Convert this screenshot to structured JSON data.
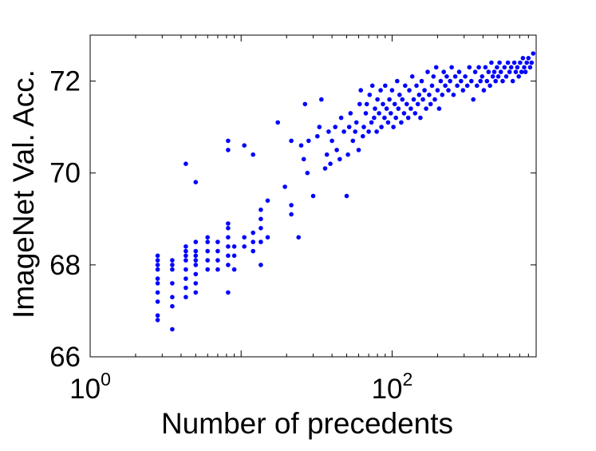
{
  "chart_data": {
    "type": "scatter",
    "title": "",
    "xlabel": "Number of precedents",
    "ylabel": "ImageNet Val. Acc.",
    "xscale": "log",
    "xlim": [
      1,
      900
    ],
    "ylim": [
      66,
      73
    ],
    "grid": false,
    "legend": "none",
    "x_ticks": [
      {
        "value": 1,
        "base": "10",
        "exp": "0"
      },
      {
        "value": 100,
        "base": "10",
        "exp": "2"
      }
    ],
    "y_ticks": [
      {
        "value": 66,
        "label": "66"
      },
      {
        "value": 68,
        "label": "68"
      },
      {
        "value": 70,
        "label": "70"
      },
      {
        "value": 72,
        "label": "72"
      }
    ],
    "marker_color": "#0000ff",
    "series": [
      {
        "points": [
          [
            2.8,
            66.8
          ],
          [
            2.8,
            66.9
          ],
          [
            2.8,
            67.2
          ],
          [
            2.8,
            67.4
          ],
          [
            2.8,
            67.6
          ],
          [
            2.8,
            67.7
          ],
          [
            2.8,
            67.9
          ],
          [
            2.8,
            68.0
          ],
          [
            2.8,
            68.1
          ],
          [
            2.8,
            68.2
          ],
          [
            3.5,
            66.6
          ],
          [
            3.5,
            67.1
          ],
          [
            3.5,
            67.3
          ],
          [
            3.5,
            67.6
          ],
          [
            3.5,
            67.9
          ],
          [
            3.5,
            68.0
          ],
          [
            3.5,
            68.1
          ],
          [
            4.3,
            67.3
          ],
          [
            4.3,
            67.5
          ],
          [
            4.3,
            67.7
          ],
          [
            4.3,
            67.9
          ],
          [
            4.3,
            68.1
          ],
          [
            4.3,
            68.2
          ],
          [
            4.3,
            68.3
          ],
          [
            4.3,
            68.4
          ],
          [
            4.3,
            70.2
          ],
          [
            5.0,
            67.4
          ],
          [
            5.0,
            67.6
          ],
          [
            5.0,
            67.8
          ],
          [
            5.0,
            68.0
          ],
          [
            5.0,
            68.1
          ],
          [
            5.0,
            68.2
          ],
          [
            5.0,
            68.3
          ],
          [
            5.0,
            68.5
          ],
          [
            5.0,
            69.8
          ],
          [
            6.0,
            67.9
          ],
          [
            6.0,
            68.1
          ],
          [
            6.0,
            68.3
          ],
          [
            6.0,
            68.5
          ],
          [
            6.0,
            68.6
          ],
          [
            7.0,
            67.9
          ],
          [
            7.0,
            68.1
          ],
          [
            7.0,
            68.3
          ],
          [
            7.0,
            68.5
          ],
          [
            8.2,
            67.4
          ],
          [
            8.2,
            68.0
          ],
          [
            8.2,
            68.2
          ],
          [
            8.2,
            68.4
          ],
          [
            8.2,
            68.6
          ],
          [
            8.2,
            68.8
          ],
          [
            8.2,
            68.9
          ],
          [
            8.2,
            70.5
          ],
          [
            8.2,
            70.7
          ],
          [
            9.0,
            67.9
          ],
          [
            9.0,
            68.2
          ],
          [
            9.0,
            68.4
          ],
          [
            10.5,
            68.4
          ],
          [
            10.5,
            68.6
          ],
          [
            10.5,
            70.6
          ],
          [
            12.0,
            68.3
          ],
          [
            12.0,
            68.5
          ],
          [
            12.0,
            68.7
          ],
          [
            12.0,
            70.4
          ],
          [
            13.5,
            68.0
          ],
          [
            13.5,
            68.5
          ],
          [
            13.5,
            68.8
          ],
          [
            13.5,
            69.0
          ],
          [
            13.5,
            69.2
          ],
          [
            15.0,
            69.4
          ],
          [
            15.0,
            68.6
          ],
          [
            17.5,
            71.1
          ],
          [
            19.5,
            69.7
          ],
          [
            21.5,
            69.1
          ],
          [
            21.5,
            69.3
          ],
          [
            21.5,
            70.7
          ],
          [
            24.0,
            68.6
          ],
          [
            25.0,
            70.6
          ],
          [
            26.0,
            70.3
          ],
          [
            26.5,
            71.5
          ],
          [
            27.5,
            70.0
          ],
          [
            28.0,
            70.7
          ],
          [
            30.0,
            69.5
          ],
          [
            32.0,
            70.8
          ],
          [
            33.0,
            71.0
          ],
          [
            34.0,
            71.6
          ],
          [
            36.0,
            70.1
          ],
          [
            37.0,
            70.4
          ],
          [
            38.0,
            70.9
          ],
          [
            39.0,
            70.2
          ],
          [
            40.0,
            70.7
          ],
          [
            42.0,
            71.0
          ],
          [
            43.0,
            70.5
          ],
          [
            45.0,
            70.3
          ],
          [
            46.0,
            71.2
          ],
          [
            48.0,
            70.9
          ],
          [
            50.0,
            69.5
          ],
          [
            51.0,
            70.4
          ],
          [
            52.0,
            71.0
          ],
          [
            53.0,
            71.3
          ],
          [
            55.0,
            70.7
          ],
          [
            57.0,
            70.9
          ],
          [
            58.0,
            71.1
          ],
          [
            60.0,
            70.5
          ],
          [
            61.0,
            71.5
          ],
          [
            62.0,
            71.8
          ],
          [
            64.0,
            70.8
          ],
          [
            65.0,
            71.0
          ],
          [
            67.0,
            71.3
          ],
          [
            68.0,
            71.5
          ],
          [
            70.0,
            70.9
          ],
          [
            71.0,
            71.7
          ],
          [
            73.0,
            71.1
          ],
          [
            74.0,
            71.9
          ],
          [
            76.0,
            71.2
          ],
          [
            77.0,
            71.4
          ],
          [
            79.0,
            70.9
          ],
          [
            80.0,
            71.6
          ],
          [
            82.0,
            71.3
          ],
          [
            84.0,
            71.8
          ],
          [
            85.0,
            71.0
          ],
          [
            87.0,
            71.5
          ],
          [
            89.0,
            71.2
          ],
          [
            90.0,
            71.9
          ],
          [
            92.0,
            71.4
          ],
          [
            94.0,
            71.1
          ],
          [
            96.0,
            71.6
          ],
          [
            98.0,
            71.3
          ],
          [
            100.0,
            71.8
          ],
          [
            102.0,
            71.0
          ],
          [
            104.0,
            71.5
          ],
          [
            106.0,
            71.2
          ],
          [
            108.0,
            72.0
          ],
          [
            110.0,
            71.4
          ],
          [
            112.0,
            71.7
          ],
          [
            115.0,
            71.1
          ],
          [
            117.0,
            71.6
          ],
          [
            120.0,
            71.3
          ],
          [
            122.0,
            71.9
          ],
          [
            125.0,
            71.5
          ],
          [
            128.0,
            71.2
          ],
          [
            130.0,
            71.8
          ],
          [
            133.0,
            71.4
          ],
          [
            136.0,
            72.1
          ],
          [
            139.0,
            71.6
          ],
          [
            142.0,
            71.3
          ],
          [
            145.0,
            71.9
          ],
          [
            148.0,
            71.5
          ],
          [
            151.0,
            71.7
          ],
          [
            154.0,
            71.2
          ],
          [
            157.0,
            72.0
          ],
          [
            160.0,
            71.6
          ],
          [
            164.0,
            71.8
          ],
          [
            168.0,
            71.4
          ],
          [
            172.0,
            72.2
          ],
          [
            176.0,
            71.7
          ],
          [
            180.0,
            71.5
          ],
          [
            184.0,
            71.9
          ],
          [
            188.0,
            72.1
          ],
          [
            192.0,
            71.6
          ],
          [
            196.0,
            72.3
          ],
          [
            200.0,
            71.8
          ],
          [
            205.0,
            71.4
          ],
          [
            210.0,
            72.0
          ],
          [
            215.0,
            71.7
          ],
          [
            220.0,
            72.2
          ],
          [
            225.0,
            71.9
          ],
          [
            230.0,
            72.1
          ],
          [
            236.0,
            71.8
          ],
          [
            242.0,
            72.0
          ],
          [
            248.0,
            72.3
          ],
          [
            255.0,
            71.7
          ],
          [
            262.0,
            72.1
          ],
          [
            270.0,
            71.9
          ],
          [
            278.0,
            72.2
          ],
          [
            286.0,
            72.0
          ],
          [
            295.0,
            71.8
          ],
          [
            305.0,
            72.1
          ],
          [
            315.0,
            71.9
          ],
          [
            325.0,
            72.3
          ],
          [
            335.0,
            72.0
          ],
          [
            345.0,
            71.6
          ],
          [
            355.0,
            72.2
          ],
          [
            365.0,
            71.9
          ],
          [
            375.0,
            72.3
          ],
          [
            385.0,
            72.0
          ],
          [
            395.0,
            72.1
          ],
          [
            405.0,
            71.8
          ],
          [
            415.0,
            72.3
          ],
          [
            425.0,
            72.0
          ],
          [
            435.0,
            72.2
          ],
          [
            445.0,
            71.9
          ],
          [
            455.0,
            72.4
          ],
          [
            465.0,
            72.1
          ],
          [
            475.0,
            72.2
          ],
          [
            485.0,
            72.0
          ],
          [
            495.0,
            72.3
          ],
          [
            505.0,
            72.1
          ],
          [
            515.0,
            72.4
          ],
          [
            525.0,
            72.2
          ],
          [
            540.0,
            72.0
          ],
          [
            555.0,
            72.3
          ],
          [
            570.0,
            72.1
          ],
          [
            585.0,
            72.4
          ],
          [
            600.0,
            72.2
          ],
          [
            615.0,
            72.3
          ],
          [
            630.0,
            72.0
          ],
          [
            645.0,
            72.4
          ],
          [
            660.0,
            72.2
          ],
          [
            675.0,
            72.3
          ],
          [
            690.0,
            72.1
          ],
          [
            705.0,
            72.4
          ],
          [
            720.0,
            72.2
          ],
          [
            735.0,
            72.5
          ],
          [
            750.0,
            72.3
          ],
          [
            765.0,
            72.2
          ],
          [
            780.0,
            72.4
          ],
          [
            800.0,
            72.5
          ],
          [
            820.0,
            72.3
          ],
          [
            840.0,
            72.4
          ],
          [
            860.0,
            72.6
          ]
        ]
      }
    ]
  }
}
